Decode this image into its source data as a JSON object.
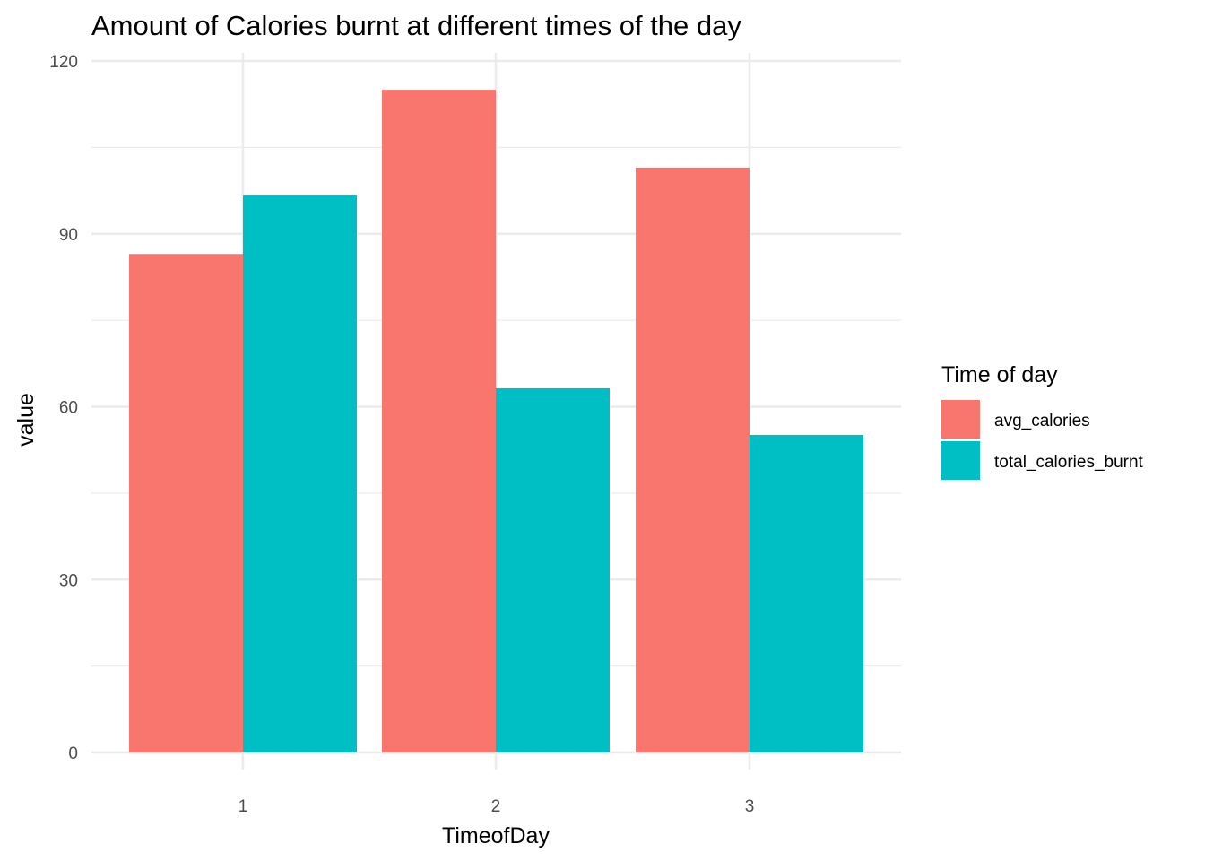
{
  "chart_data": {
    "type": "bar",
    "title": "Amount of Calories burnt at different times of the day",
    "xlabel": "TimeofDay",
    "ylabel": "value",
    "categories": [
      "1",
      "2",
      "3"
    ],
    "series": [
      {
        "name": "avg_calories",
        "color": "#F8766D",
        "values": [
          86.5,
          115,
          101.5
        ]
      },
      {
        "name": "total_calories_burnt",
        "color": "#00BFC4",
        "values": [
          96.8,
          63.2,
          55.1
        ]
      }
    ],
    "ylim": [
      0,
      120
    ],
    "yticks": [
      0,
      30,
      60,
      90,
      120
    ],
    "ytick_labels": [
      "0",
      "30",
      "60",
      "90",
      "120"
    ],
    "grid": true,
    "legend": {
      "title": "Time of day",
      "placement": "right"
    }
  }
}
